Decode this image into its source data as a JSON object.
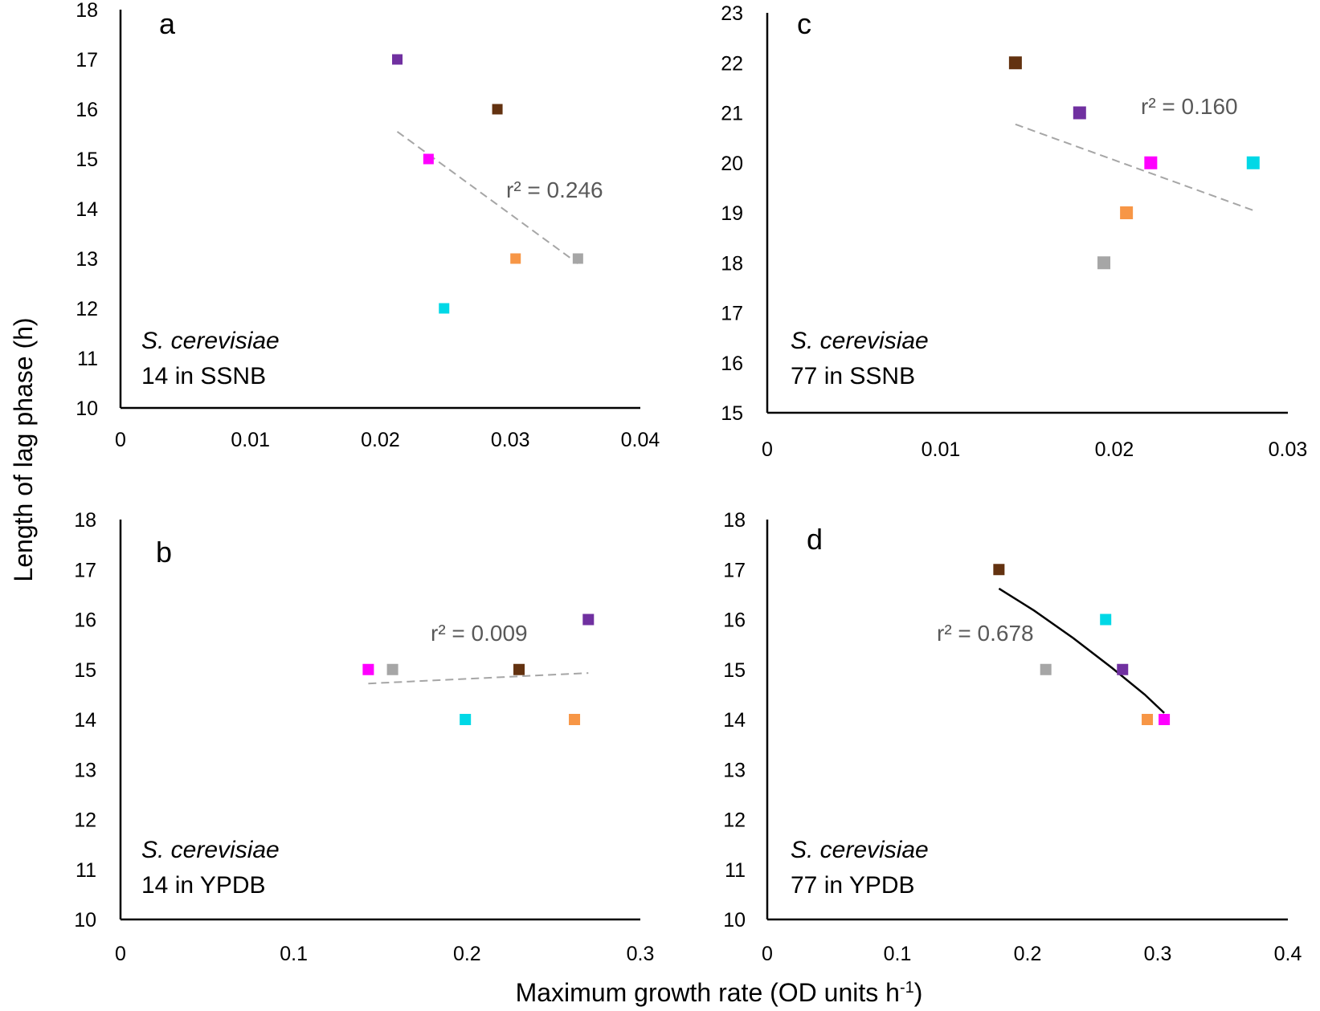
{
  "figure": {
    "y_axis_title": "Length of lag phase (h)",
    "x_axis_title_main": "Maximum growth rate (OD units h",
    "x_axis_title_sup": "-1",
    "x_axis_title_end": ")"
  },
  "chart_data": [
    {
      "type": "scatter",
      "panel": "a",
      "species": "S. cerevisiae",
      "condition": "14 in SSNB",
      "r2_label": "r² = 0.246",
      "xlim": [
        0,
        0.04
      ],
      "ylim": [
        10,
        18
      ],
      "x_ticks": [
        0,
        0.01,
        0.02,
        0.03,
        0.04
      ],
      "x_tick_labels": [
        "0",
        "0.01",
        "0.02",
        "0.03",
        "0.04"
      ],
      "y_ticks": [
        10,
        11,
        12,
        13,
        14,
        15,
        16,
        17,
        18
      ],
      "y_tick_labels": [
        "10",
        "11",
        "12",
        "13",
        "14",
        "15",
        "16",
        "17",
        "18"
      ],
      "points": [
        {
          "x": 0.0213,
          "y": 17,
          "color": "#7030a0"
        },
        {
          "x": 0.029,
          "y": 16,
          "color": "#633210"
        },
        {
          "x": 0.0237,
          "y": 15,
          "color": "#ff00ff"
        },
        {
          "x": 0.0304,
          "y": 13,
          "color": "#f79646"
        },
        {
          "x": 0.0352,
          "y": 13,
          "color": "#a6a6a6"
        },
        {
          "x": 0.0249,
          "y": 12,
          "color": "#00d8e6"
        }
      ],
      "trend": {
        "style": "dashed",
        "color": "#a6a6a6",
        "x": [
          0.0213,
          0.0352
        ],
        "y": [
          15.55,
          12.9
        ]
      }
    },
    {
      "type": "scatter",
      "panel": "c",
      "species": "S. cerevisiae",
      "condition": "77 in SSNB",
      "r2_label": "r² = 0.160",
      "xlim": [
        0,
        0.03
      ],
      "ylim": [
        15,
        23
      ],
      "x_ticks": [
        0,
        0.01,
        0.02,
        0.03
      ],
      "x_tick_labels": [
        "0",
        "0.01",
        "0.02",
        "0.03"
      ],
      "y_ticks": [
        15,
        16,
        17,
        18,
        19,
        20,
        21,
        22,
        23
      ],
      "y_tick_labels": [
        "15",
        "16",
        "17",
        "18",
        "19",
        "20",
        "21",
        "22",
        "23"
      ],
      "points": [
        {
          "x": 0.0143,
          "y": 22,
          "color": "#633210"
        },
        {
          "x": 0.018,
          "y": 21,
          "color": "#7030a0"
        },
        {
          "x": 0.0221,
          "y": 20,
          "color": "#ff00ff"
        },
        {
          "x": 0.028,
          "y": 20,
          "color": "#00d8e6"
        },
        {
          "x": 0.0207,
          "y": 19,
          "color": "#f79646"
        },
        {
          "x": 0.0194,
          "y": 18,
          "color": "#a6a6a6"
        }
      ],
      "trend": {
        "style": "dashed",
        "color": "#a6a6a6",
        "x": [
          0.0143,
          0.028
        ],
        "y": [
          20.77,
          19.05
        ]
      }
    },
    {
      "type": "scatter",
      "panel": "b",
      "species": "S. cerevisiae",
      "condition": "14 in YPDB",
      "r2_label": "r² = 0.009",
      "xlim": [
        0,
        0.3
      ],
      "ylim": [
        10,
        18
      ],
      "x_ticks": [
        0,
        0.1,
        0.2,
        0.3
      ],
      "x_tick_labels": [
        "0",
        "0.1",
        "0.2",
        "0.3"
      ],
      "y_ticks": [
        10,
        11,
        12,
        13,
        14,
        15,
        16,
        17,
        18
      ],
      "y_tick_labels": [
        "10",
        "11",
        "12",
        "13",
        "14",
        "15",
        "16",
        "17",
        "18"
      ],
      "points": [
        {
          "x": 0.27,
          "y": 16,
          "color": "#7030a0"
        },
        {
          "x": 0.143,
          "y": 15,
          "color": "#ff00ff"
        },
        {
          "x": 0.157,
          "y": 15,
          "color": "#a6a6a6"
        },
        {
          "x": 0.23,
          "y": 15,
          "color": "#633210"
        },
        {
          "x": 0.199,
          "y": 14,
          "color": "#00d8e6"
        },
        {
          "x": 0.262,
          "y": 14,
          "color": "#f79646"
        }
      ],
      "trend": {
        "style": "dashed",
        "color": "#a6a6a6",
        "x": [
          0.143,
          0.27
        ],
        "y": [
          14.72,
          14.93
        ]
      }
    },
    {
      "type": "scatter",
      "panel": "d",
      "species": "S. cerevisiae",
      "condition": "77 in YPDB",
      "r2_label": "r² = 0.678",
      "xlim": [
        0,
        0.4
      ],
      "ylim": [
        10,
        18
      ],
      "x_ticks": [
        0,
        0.1,
        0.2,
        0.3,
        0.4
      ],
      "x_tick_labels": [
        "0",
        "0.1",
        "0.2",
        "0.3",
        "0.4"
      ],
      "y_ticks": [
        10,
        11,
        12,
        13,
        14,
        15,
        16,
        17,
        18
      ],
      "y_tick_labels": [
        "10",
        "11",
        "12",
        "13",
        "14",
        "15",
        "16",
        "17",
        "18"
      ],
      "points": [
        {
          "x": 0.178,
          "y": 17,
          "color": "#633210"
        },
        {
          "x": 0.26,
          "y": 16,
          "color": "#00d8e6"
        },
        {
          "x": 0.214,
          "y": 15,
          "color": "#a6a6a6"
        },
        {
          "x": 0.273,
          "y": 15,
          "color": "#7030a0"
        },
        {
          "x": 0.292,
          "y": 14,
          "color": "#f79646"
        },
        {
          "x": 0.305,
          "y": 14,
          "color": "#ff00ff"
        }
      ],
      "trend": {
        "style": "solid",
        "color": "#000000",
        "x": [
          0.178,
          0.205,
          0.235,
          0.265,
          0.29,
          0.305
        ],
        "y": [
          16.62,
          16.18,
          15.63,
          15.03,
          14.5,
          14.13
        ]
      }
    }
  ]
}
